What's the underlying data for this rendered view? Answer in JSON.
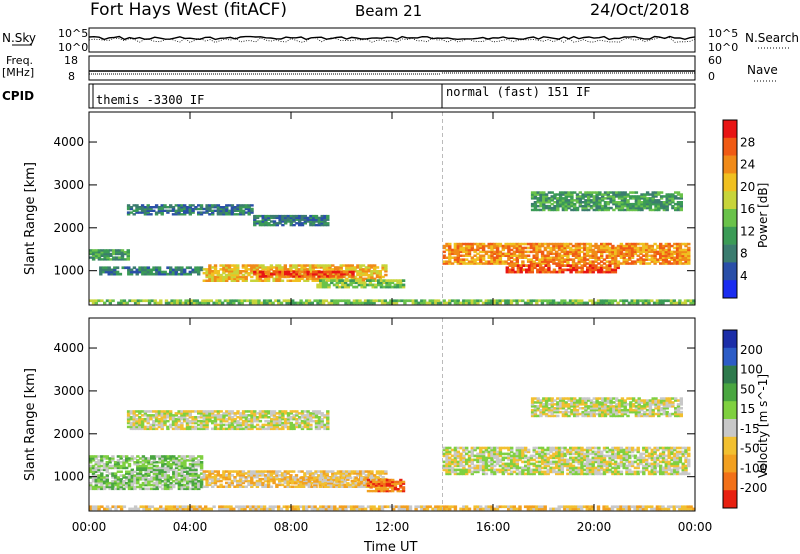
{
  "header": {
    "station": "Fort Hays West (fitACF)",
    "beam": "Beam 21",
    "date": "24/Oct/2018"
  },
  "top_panels": {
    "nsky_label": "N.Sky",
    "nsky_ticks": [
      "10^5",
      "10^0"
    ],
    "nsearch_label": "N.Search",
    "nsearch_ticks": [
      "10^5",
      "10^0"
    ],
    "freq_label": "Freq.",
    "freq_unit": "[MHz]",
    "freq_ticks": [
      "18",
      "8"
    ],
    "nave_label": "Nave",
    "nave_ticks": [
      "60",
      "0"
    ],
    "cpid_label": "CPID",
    "cpid_segments": [
      {
        "label": "themis -3300 IF",
        "start_hour": 0
      },
      {
        "label": "normal (fast) 151 IF",
        "start_hour": 14
      }
    ]
  },
  "x_axis": {
    "label": "Time UT",
    "ticks": [
      "00:00",
      "04:00",
      "08:00",
      "12:00",
      "16:00",
      "20:00",
      "00:00"
    ]
  },
  "chart_data": [
    {
      "type": "heatmap",
      "name": "power",
      "ylabel": "Slant Range [km]",
      "yticks": [
        1000,
        2000,
        3000,
        4000
      ],
      "ylim": [
        200,
        4700
      ],
      "xlim_hours": [
        0,
        24
      ],
      "colorbar": {
        "label": "Power [dB]",
        "ticks": [
          "4",
          "8",
          "12",
          "16",
          "20",
          "24",
          "28"
        ],
        "colors": [
          "#1a2cf0",
          "#2a4fa8",
          "#3b7c6f",
          "#3b9b56",
          "#69c24a",
          "#c7d43a",
          "#f0c020",
          "#f08a18",
          "#f05a14",
          "#e81414"
        ]
      },
      "bands": [
        {
          "t0": 0.0,
          "t1": 1.6,
          "r0": 1250,
          "r1": 1500,
          "level": 3
        },
        {
          "t0": 0.4,
          "t1": 4.5,
          "r0": 900,
          "r1": 1100,
          "level": 2
        },
        {
          "t0": 4.5,
          "t1": 11.8,
          "r0": 750,
          "r1": 1150,
          "level": 6
        },
        {
          "t0": 6.5,
          "t1": 10.5,
          "r0": 850,
          "r1": 1000,
          "level": 8
        },
        {
          "t0": 9.0,
          "t1": 12.5,
          "r0": 600,
          "r1": 800,
          "level": 4
        },
        {
          "t0": 1.5,
          "t1": 6.5,
          "r0": 2300,
          "r1": 2550,
          "level": 2
        },
        {
          "t0": 6.5,
          "t1": 9.5,
          "r0": 2050,
          "r1": 2300,
          "level": 2
        },
        {
          "t0": 14.0,
          "t1": 23.8,
          "r0": 1150,
          "r1": 1650,
          "level": 7
        },
        {
          "t0": 16.5,
          "t1": 21.0,
          "r0": 950,
          "r1": 1150,
          "level": 8
        },
        {
          "t0": 17.5,
          "t1": 23.5,
          "r0": 2400,
          "r1": 2850,
          "level": 3
        },
        {
          "t0": 0.0,
          "t1": 24.0,
          "r0": 230,
          "r1": 330,
          "level": 4
        }
      ]
    },
    {
      "type": "heatmap",
      "name": "velocity",
      "ylabel": "Slant Range [km]",
      "yticks": [
        1000,
        2000,
        3000,
        4000
      ],
      "ylim": [
        200,
        4700
      ],
      "xlim_hours": [
        0,
        24
      ],
      "colorbar": {
        "label": "Velocity [m s^-1]",
        "ticks": [
          "200",
          "100",
          "50",
          "15",
          "-15",
          "-50",
          "-100",
          "-200"
        ],
        "colors": [
          "#1c2ea8",
          "#2c5cc6",
          "#2e7a4c",
          "#49a640",
          "#7fd040",
          "#c8c8c8",
          "#f2c030",
          "#f2a020",
          "#f27018",
          "#e82010"
        ]
      },
      "bands": [
        {
          "t0": 0.0,
          "t1": 4.5,
          "r0": 700,
          "r1": 1500,
          "level": 4
        },
        {
          "t0": 4.5,
          "t1": 11.8,
          "r0": 750,
          "r1": 1150,
          "level": 6
        },
        {
          "t0": 8.0,
          "t1": 11.5,
          "r0": 750,
          "r1": 1000,
          "level": 6
        },
        {
          "t0": 11.0,
          "t1": 12.5,
          "r0": 650,
          "r1": 950,
          "level": 8
        },
        {
          "t0": 1.5,
          "t1": 9.5,
          "r0": 2100,
          "r1": 2550,
          "level": 5
        },
        {
          "t0": 14.0,
          "t1": 23.8,
          "r0": 1050,
          "r1": 1700,
          "level": 5
        },
        {
          "t0": 17.5,
          "t1": 23.5,
          "r0": 2400,
          "r1": 2850,
          "level": 5
        },
        {
          "t0": 0.0,
          "t1": 24.0,
          "r0": 230,
          "r1": 330,
          "level": 6
        }
      ]
    }
  ]
}
